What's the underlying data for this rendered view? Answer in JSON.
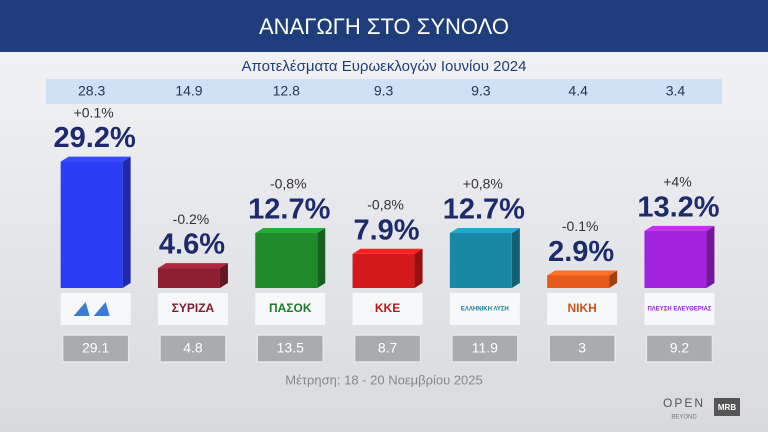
{
  "chart_data": {
    "type": "bar",
    "title": "ΑΝΑΓΩΓΗ ΣΤΟ ΣΥΝΟΛΟ",
    "subtitle": "Αποτελέσματα Ευρωεκλογών Ιουνίου 2024",
    "reference_values": [
      28.3,
      14.9,
      12.8,
      9.3,
      9.3,
      4.4,
      3.4
    ],
    "categories": [
      null,
      "ΣΥΡΙΖΑ",
      "ΠΑΣΟΚ",
      "ΚΚΕ",
      "ΕΛΛΗΝΙΚΗ ΛΥΣΗ",
      "ΝΙΚΗ",
      "ΠΛΕΥΣΗ ΕΛΕΥΘΕΡΙΑΣ"
    ],
    "values": [
      29.2,
      4.6,
      12.7,
      7.9,
      12.7,
      2.9,
      13.2
    ],
    "value_labels": [
      "29.2%",
      "4.6%",
      "12.7%",
      "7.9%",
      "12.7%",
      "2.9%",
      "13.2%"
    ],
    "change_labels": [
      "+0.1%",
      "-0.2%",
      "-0,8%",
      "-0,8%",
      "+0,8%",
      "-0.1%",
      "+4%"
    ],
    "colors": [
      "#2b3cf5",
      "#8e1f33",
      "#1f8a2c",
      "#d31a1a",
      "#1b87a6",
      "#e65a1c",
      "#a322de"
    ],
    "secondary_values": [
      29.1,
      4.8,
      13.5,
      8.7,
      11.9,
      3,
      9.2
    ],
    "note": "Μέτρηση: 18 - 20 Νοεμβρίου 2025",
    "brand": {
      "name": "OPEN",
      "tagline": "BEYOND",
      "partner": "MRB"
    }
  }
}
